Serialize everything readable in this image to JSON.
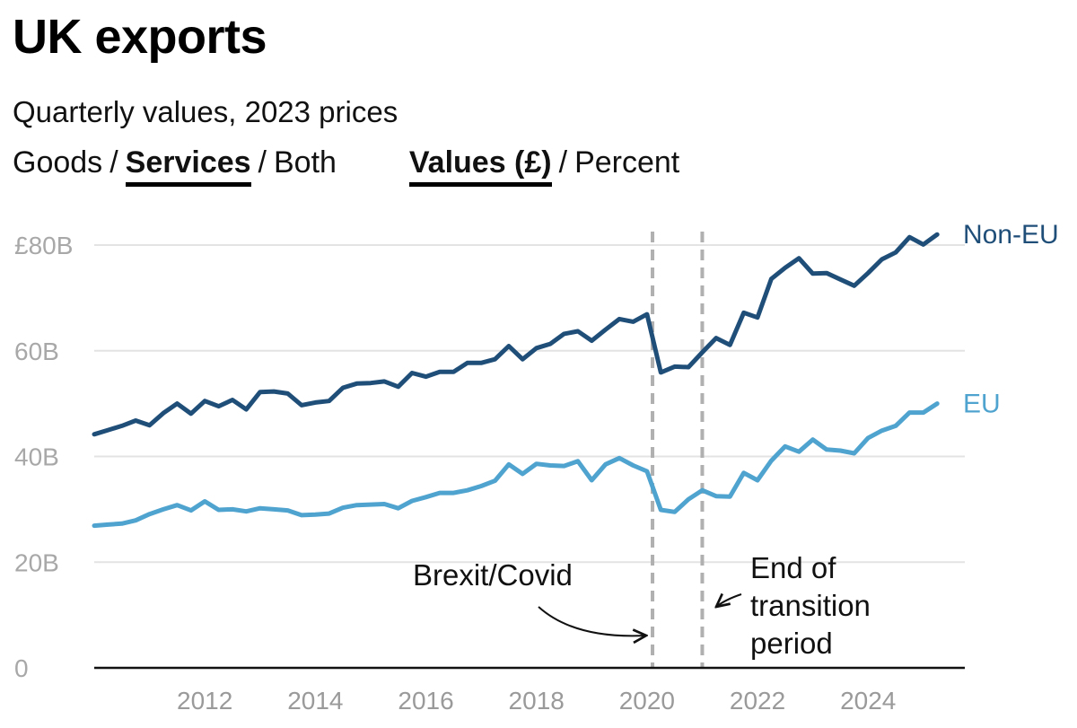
{
  "title": "UK exports",
  "subtitle": "Quarterly values, 2023 prices",
  "toggles": {
    "category": {
      "options": [
        "Goods",
        "Services",
        "Both"
      ],
      "selected": "Services"
    },
    "measure": {
      "options": [
        "Values (£)",
        "Percent"
      ],
      "selected": "Values (£)"
    }
  },
  "colors": {
    "non_eu": "#1f4e79",
    "eu": "#4fa3cf",
    "grid": "#e3e3e3",
    "annotation_line": "#b0b0b0"
  },
  "chart_data": {
    "type": "line",
    "title": "UK exports",
    "subtitle": "Quarterly values, 2023 prices",
    "xlabel": "",
    "ylabel": "",
    "xlim": [
      2010.0,
      2025.75
    ],
    "ylim": [
      0,
      80
    ],
    "y_ticks": [
      0,
      20,
      40,
      60,
      80
    ],
    "y_tick_labels": [
      "0",
      "20B",
      "40B",
      "60B",
      "£80B"
    ],
    "x_ticks": [
      2012,
      2014,
      2016,
      2018,
      2020,
      2022,
      2024
    ],
    "x_tick_labels": [
      "2012",
      "2014",
      "2016",
      "2018",
      "2020",
      "2022",
      "2024"
    ],
    "grid": true,
    "x": [
      2010.0,
      2010.25,
      2010.5,
      2010.75,
      2011.0,
      2011.25,
      2011.5,
      2011.75,
      2012.0,
      2012.25,
      2012.5,
      2012.75,
      2013.0,
      2013.25,
      2013.5,
      2013.75,
      2014.0,
      2014.25,
      2014.5,
      2014.75,
      2015.0,
      2015.25,
      2015.5,
      2015.75,
      2016.0,
      2016.25,
      2016.5,
      2016.75,
      2017.0,
      2017.25,
      2017.5,
      2017.75,
      2018.0,
      2018.25,
      2018.5,
      2018.75,
      2019.0,
      2019.25,
      2019.5,
      2019.75,
      2020.0,
      2020.25,
      2020.5,
      2020.75,
      2021.0,
      2021.25,
      2021.5,
      2021.75,
      2022.0,
      2022.25,
      2022.5,
      2022.75,
      2023.0,
      2023.25,
      2023.5,
      2023.75,
      2024.0,
      2024.25,
      2024.5,
      2024.75,
      2025.0,
      2025.25,
      2025.5
    ],
    "series": [
      {
        "name": "Non-EU",
        "label": "Non-EU",
        "values": [
          44.2,
          45.0,
          45.8,
          46.8,
          45.9,
          48.2,
          50.0,
          48.1,
          50.5,
          49.5,
          50.7,
          48.9,
          52.2,
          52.3,
          51.9,
          49.7,
          50.2,
          50.5,
          53.0,
          53.8,
          53.9,
          54.2,
          53.2,
          55.8,
          55.1,
          56.0,
          56.0,
          57.7,
          57.7,
          58.4,
          60.9,
          58.4,
          60.5,
          61.3,
          63.2,
          63.7,
          61.9,
          64.0,
          66.0,
          65.5,
          66.9,
          55.9,
          57.0,
          56.9,
          59.7,
          62.4,
          61.1,
          67.2,
          66.3,
          73.6,
          75.7,
          77.5,
          74.6,
          74.7,
          73.5,
          72.3,
          74.7,
          77.3,
          78.6,
          81.5,
          80.1,
          82.0,
          null
        ],
        "color": "#1f4e79"
      },
      {
        "name": "EU",
        "label": "EU",
        "values": [
          26.9,
          27.1,
          27.3,
          27.9,
          29.1,
          30.0,
          30.8,
          29.8,
          31.5,
          29.9,
          30.0,
          29.6,
          30.2,
          30.0,
          29.8,
          28.9,
          29.0,
          29.2,
          30.3,
          30.8,
          30.9,
          31.0,
          30.2,
          31.6,
          32.3,
          33.1,
          33.1,
          33.6,
          34.4,
          35.4,
          38.5,
          36.7,
          38.6,
          38.3,
          38.2,
          39.1,
          35.5,
          38.5,
          39.7,
          38.3,
          37.2,
          29.9,
          29.5,
          31.9,
          33.6,
          32.5,
          32.4,
          36.9,
          35.5,
          39.2,
          41.9,
          40.9,
          43.2,
          41.3,
          41.1,
          40.6,
          43.5,
          44.9,
          45.8,
          48.3,
          48.3,
          50.0,
          null
        ],
        "color": "#4fa3cf"
      }
    ],
    "annotations": [
      {
        "x": 2020.1,
        "label": "Brexit/Covid"
      },
      {
        "x": 2021.0,
        "label": "End of transition period",
        "lines": [
          "End of",
          "transition",
          "period"
        ]
      }
    ]
  }
}
